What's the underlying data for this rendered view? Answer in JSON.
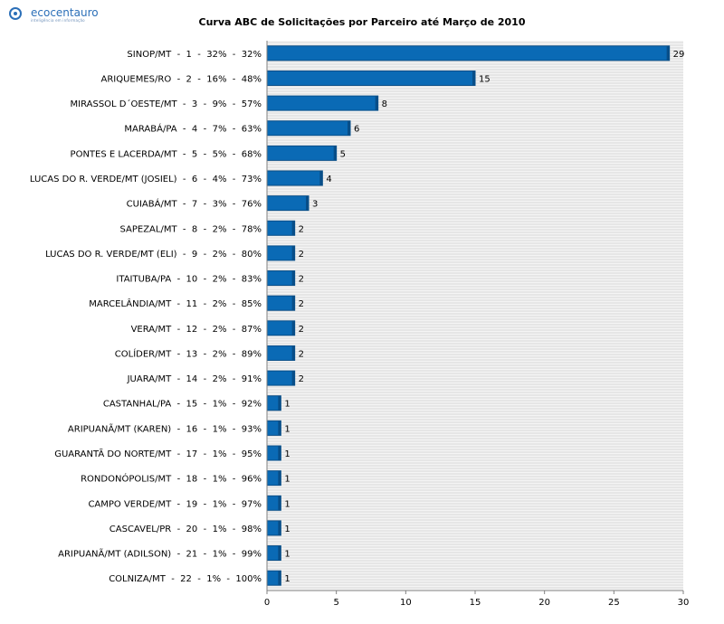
{
  "logo": {
    "name": "ecocentauro",
    "tagline": "inteligência em informação"
  },
  "chart_data": {
    "type": "bar",
    "orientation": "horizontal",
    "title": "Curva ABC de Solicitações por Parceiro até Março de 2010",
    "categories": [
      "SINOP/MT  -  1  -  32%  -  32%",
      "ARIQUEMES/RO  -  2  -  16%  -  48%",
      "MIRASSOL D´OESTE/MT  -  3  -  9%  -  57%",
      "MARABÁ/PA  -  4  -  7%  -  63%",
      "PONTES E LACERDA/MT  -  5  -  5%  -  68%",
      "LUCAS DO R. VERDE/MT (JOSIEL)  -  6  -  4%  -  73%",
      "CUIABÁ/MT  -  7  -  3%  -  76%",
      "SAPEZAL/MT  -  8  -  2%  -  78%",
      "LUCAS DO R. VERDE/MT (ELI)  -  9  -  2%  -  80%",
      "ITAITUBA/PA  -  10  -  2%  -  83%",
      "MARCELÂNDIA/MT  -  11  -  2%  -  85%",
      "VERA/MT  -  12  -  2%  -  87%",
      "COLÍDER/MT  -  13  -  2%  -  89%",
      "JUARA/MT  -  14  -  2%  -  91%",
      "CASTANHAL/PA  -  15  -  1%  -  92%",
      "ARIPUANÃ/MT (KAREN)  -  16  -  1%  -  93%",
      "GUARANTÃ DO NORTE/MT  -  17  -  1%  -  95%",
      "RONDONÓPOLIS/MT  -  18  -  1%  -  96%",
      "CAMPO VERDE/MT  -  19  -  1%  -  97%",
      "CASCAVEL/PR  -  20  -  1%  -  98%",
      "ARIPUANÃ/MT (ADILSON)  -  21  -  1%  -  99%",
      "COLNIZA/MT  -  22  -  1%  -  100%"
    ],
    "values": [
      29,
      15,
      8,
      6,
      5,
      4,
      3,
      2,
      2,
      2,
      2,
      2,
      2,
      2,
      1,
      1,
      1,
      1,
      1,
      1,
      1,
      1
    ],
    "xlim": [
      0,
      30
    ],
    "xticks": [
      0,
      5,
      10,
      15,
      20,
      25,
      30
    ],
    "grid": "horizontal stripes",
    "colors": {
      "bar": "#0a6ab5",
      "bar_edge": "#084e88",
      "grid": "#d9d9d9",
      "axis": "#808080"
    }
  }
}
